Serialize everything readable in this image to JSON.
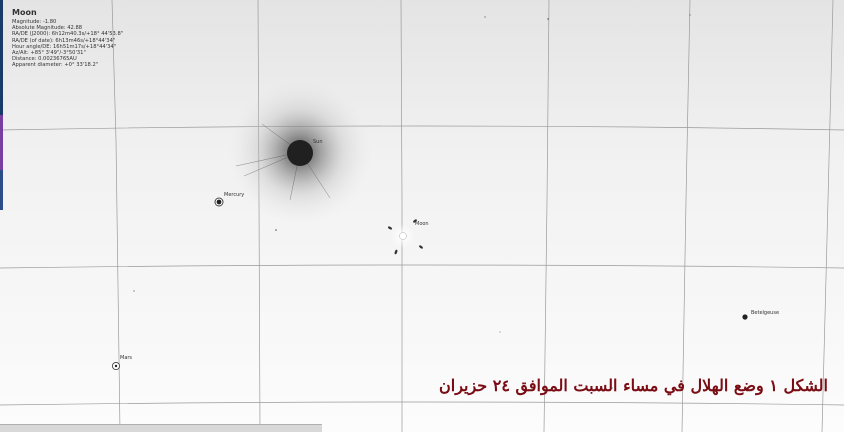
{
  "info_panel": {
    "object_name": "Moon",
    "lines": [
      "Magnitude: -1.80",
      "Absolute Magnitude: 42.88",
      "RA/DE (J2000): 6h12m40.3s/+18° 44'53.8\"",
      "RA/DE (of date): 6h13m46s/+18°44'34\"",
      "Hour angle/DE: 16h51m17s/+18°44'34\"",
      "Az/Alt: +85° 3'49\"/-3°50'31\"",
      "Distance: 0.00236765AU",
      "Apparent diameter: +0° 33'18.2\""
    ]
  },
  "sky_labels": {
    "sun": "Sun",
    "mercury": "Mercury",
    "moon": "Moon",
    "betelgeuse": "Betelgeuse",
    "mars": "Mars"
  },
  "caption": "الشكل ١ وضع الهلال في مساء السبت الموافق ٢٤ حزيران",
  "colors": {
    "caption": "#7a0c14",
    "grid": "#9a9a9a",
    "sun_core": "#202020",
    "background": "#fafafa"
  }
}
